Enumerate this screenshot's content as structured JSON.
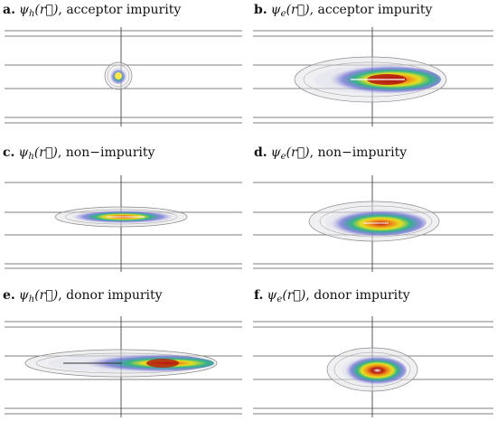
{
  "panels": [
    {
      "letter": "a.",
      "sub": "h",
      "label": ", acceptor impurity"
    },
    {
      "letter": "b.",
      "sub": "e",
      "label": ", acceptor impurity"
    },
    {
      "letter": "c.",
      "sub": "h",
      "label": ", non−impurity"
    },
    {
      "letter": "d.",
      "sub": "e",
      "label": ", non−impurity"
    },
    {
      "letter": "e.",
      "sub": "h",
      "label": ", donor impurity"
    },
    {
      "letter": "f.",
      "sub": "e",
      "label": ", donor impurity"
    }
  ],
  "symbols": {
    "psi": "ψ",
    "rvec": "(r⃗)"
  },
  "colors": {
    "hot": "#b0170f",
    "warm": "#f08a1a",
    "mid": "#e6e020",
    "cool": "#31b487",
    "cold": "#4f4fcf",
    "shell": "#9a9a9a"
  }
}
